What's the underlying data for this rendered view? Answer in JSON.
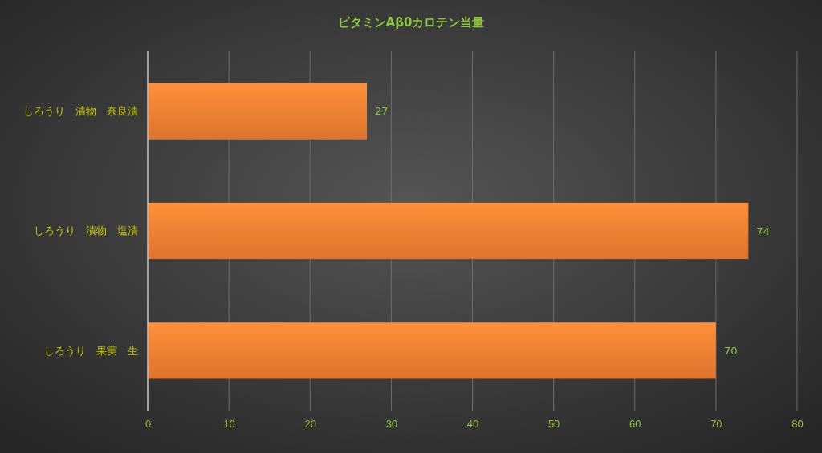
{
  "chart_data": {
    "type": "bar",
    "orientation": "horizontal",
    "title": "ビタミンAβ0カロテン当量",
    "categories": [
      "しろうり　漬物　奈良漬",
      "しろうり　漬物　塩漬",
      "しろうり　果実　生"
    ],
    "values": [
      27,
      74,
      70
    ],
    "color": "#ed7d31",
    "xlim": [
      0,
      80
    ],
    "xticks": [
      0,
      10,
      20,
      30,
      40,
      50,
      60,
      70,
      80
    ],
    "grid": "x",
    "data_labels": true
  }
}
